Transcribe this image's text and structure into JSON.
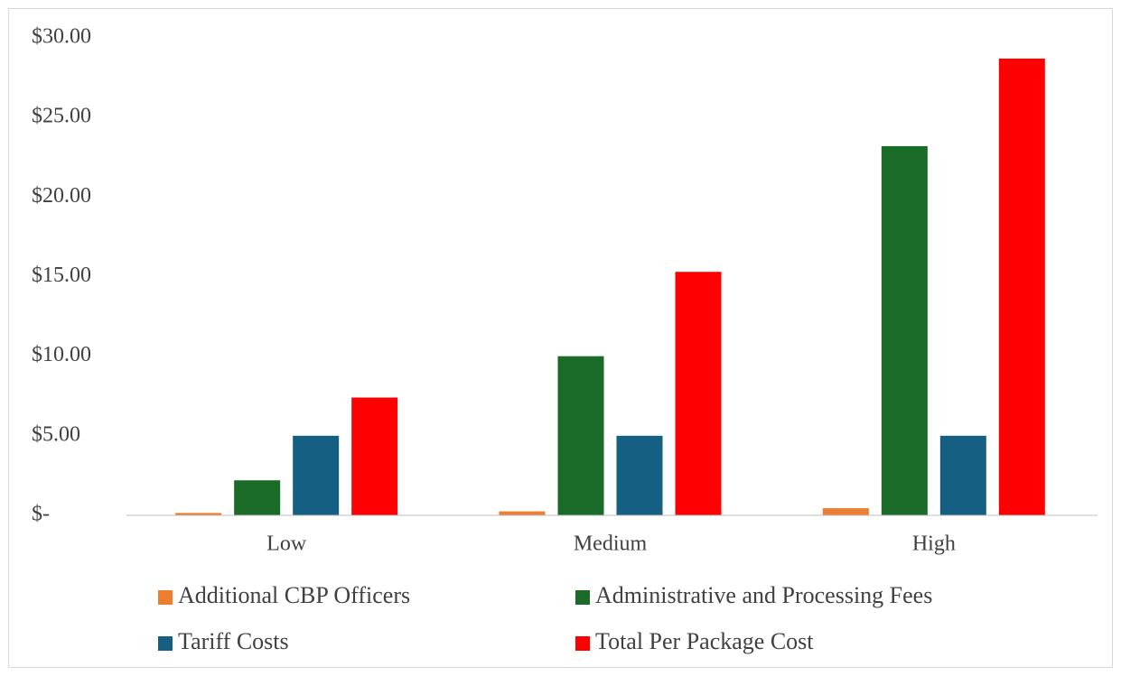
{
  "chart_data": {
    "type": "bar",
    "categories": [
      "Low",
      "Medium",
      "High"
    ],
    "series": [
      {
        "name": "Additional CBP Officers",
        "color": "#ed7d31",
        "values": [
          0.15,
          0.25,
          0.45
        ]
      },
      {
        "name": "Administrative and Processing Fees",
        "color": "#1a6b27",
        "values": [
          2.2,
          10.0,
          23.2
        ]
      },
      {
        "name": "Tariff Costs",
        "color": "#156082",
        "values": [
          5.0,
          5.0,
          5.0
        ]
      },
      {
        "name": "Total Per Package Cost",
        "color": "#ff0000",
        "values": [
          7.4,
          15.3,
          28.7
        ]
      }
    ],
    "ylim": [
      0,
      30
    ],
    "yticks": [
      {
        "value": 0,
        "label": "$-"
      },
      {
        "value": 5,
        "label": "$5.00"
      },
      {
        "value": 10,
        "label": "$10.00"
      },
      {
        "value": 15,
        "label": "$15.00"
      },
      {
        "value": 20,
        "label": "$20.00"
      },
      {
        "value": 25,
        "label": "$25.00"
      },
      {
        "value": 30,
        "label": "$30.00"
      }
    ],
    "grid": false,
    "legend": "bottom"
  }
}
